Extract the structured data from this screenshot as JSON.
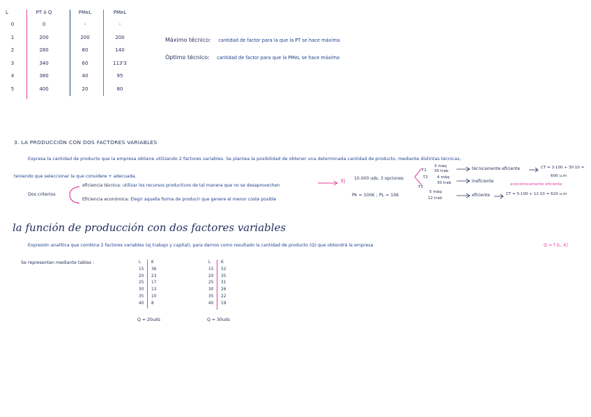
{
  "top_table": {
    "headers": {
      "l": "L",
      "pt": "PT ó Q",
      "pmel": "PMeL",
      "pmel2": "PMeL"
    },
    "l": [
      "0",
      "1",
      "2",
      "3",
      "4",
      "5"
    ],
    "pt": [
      "0",
      "200",
      "280",
      "340",
      "380",
      "400"
    ],
    "pmel": [
      "-",
      "200",
      "80",
      "60",
      "40",
      "20"
    ],
    "pmel2": [
      "-",
      "200",
      "140",
      "113'3",
      "95",
      "80"
    ]
  },
  "definitions": {
    "maximo_label": "Máximo técnico:",
    "maximo_text": "cantidad de factor para la que la PT se hace máxima",
    "optimo_label": "Óptimo técnico:",
    "optimo_text": "cantidad de factor para que la PMeL se hace máxima"
  },
  "section3": {
    "heading": "3. LA PRODUCCIÓN CON DOS FACTORES VARIABLES",
    "intro_line1": "Expresa la cantidad de producto que la empresa obtiene utilizando 2 factores variables. Se plantea la posibilidad de obtener una determinada cantidad de producto, mediante distintas técnicas,",
    "intro_line2": "teniendo que seleccionar la que considere + adecuada.",
    "criteria_label": "Dos criterios",
    "tecnica_label": "eficiencia técnica:",
    "tecnica_text": "utilizar los recursos productivos de tal manera que no se desaprovechen",
    "economica_label": "Eficiencia económica:",
    "economica_text": "Elegir aquella forma de producir que genere el menor coste posible",
    "example_ej": "Ej",
    "example_text": "10.000 uds, 3 opciones",
    "prices": "Pk = 100€ ; PL = 10€",
    "t1": "T1",
    "t1_top": "3 máq",
    "t1_bottom": "30 trab",
    "t2": "T2",
    "t2_top": "4 máq",
    "t2_bottom": "30 trab",
    "t3": "T3",
    "t3_top": "5 máq",
    "t3_bottom": "12 trab",
    "res1": "técnicamente eficiente",
    "cost1": "CT = 3·100 + 30·10 =",
    "cost1b": "600 u.m",
    "res2": "ineficiente",
    "res2b": "económicamente eficiente",
    "res3": "eficiente",
    "cost3": "CT = 5·100 + 12·10 = 620 u.m"
  },
  "funcion": {
    "title": "la función de producción con dos factores variables",
    "expr_text": "Expresión analítica que combina 2 factores variables (ej trabajo y capital), para darnos como resultado la cantidad de producto (Q) que obtendrá la empresa",
    "formula": "Q = f (L, K)",
    "tables_label": "Se representan mediante tablas :",
    "table1": {
      "h_l": "L",
      "h_k": "K",
      "l": [
        "15",
        "20",
        "25",
        "30",
        "35",
        "40"
      ],
      "k": [
        "36",
        "23",
        "17",
        "13",
        "10",
        "8"
      ],
      "q": "Q = 20uds"
    },
    "table2": {
      "h_l": "L",
      "h_k": "K",
      "l": [
        "15",
        "20",
        "25",
        "30",
        "35",
        "40"
      ],
      "k": [
        "52",
        "35",
        "31",
        "26",
        "22",
        "19"
      ],
      "q": "Q = 30uds"
    }
  },
  "colors": {
    "ink": "#1f3f8f",
    "pink": "#e0409a",
    "dark": "#27305a"
  }
}
